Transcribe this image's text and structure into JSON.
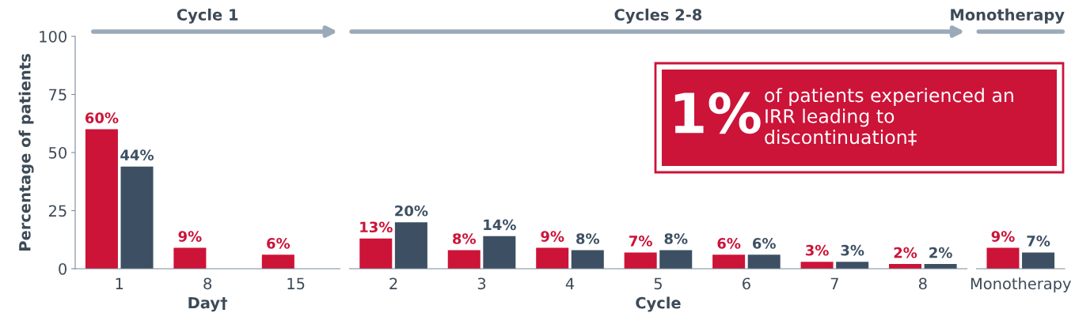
{
  "chart_data": [
    {
      "type": "bar",
      "title": "Cycle 1",
      "xlabel": "Day†",
      "categories": [
        "1",
        "8",
        "15"
      ],
      "ylabel": "Percentage of patients",
      "ylim": [
        0,
        100
      ],
      "yticks": [
        0,
        25,
        50,
        75,
        100
      ],
      "series": [
        {
          "color": "#cc1338",
          "values": [
            60,
            9,
            6
          ],
          "value_labels": [
            "60%",
            "9%",
            "6%"
          ]
        },
        {
          "color": "#3d5063",
          "values": [
            44,
            null,
            null
          ],
          "value_labels": [
            "44%",
            null,
            null
          ]
        }
      ]
    },
    {
      "type": "bar",
      "title": "Cycles 2-8",
      "xlabel": "Cycle",
      "categories": [
        "2",
        "3",
        "4",
        "5",
        "6",
        "7",
        "8"
      ],
      "ylim": [
        0,
        100
      ],
      "tick_labels": "x",
      "annotations": [
        "1%",
        "of patients experienced an IRR leading to discontinuation‡"
      ],
      "series": [
        {
          "color": "#cc1338",
          "values": [
            13,
            8,
            9,
            7,
            6,
            3,
            2
          ],
          "value_labels": [
            "13%",
            "8%",
            "9%",
            "7%",
            "6%",
            "3%",
            "2%"
          ]
        },
        {
          "color": "#3d5063",
          "values": [
            20,
            14,
            8,
            8,
            6,
            3,
            2
          ],
          "value_labels": [
            "20%",
            "14%",
            "8%",
            "8%",
            "6%",
            "3%",
            "2%"
          ]
        }
      ]
    },
    {
      "type": "bar",
      "title": "Monotherapy",
      "categories": [
        "Monotherapy"
      ],
      "ylim": [
        0,
        100
      ],
      "tick_labels": "x",
      "series": [
        {
          "color": "#cc1338",
          "values": [
            9
          ],
          "value_labels": [
            "9%"
          ]
        },
        {
          "color": "#3d5063",
          "values": [
            7
          ],
          "value_labels": [
            "7%"
          ]
        }
      ]
    }
  ]
}
